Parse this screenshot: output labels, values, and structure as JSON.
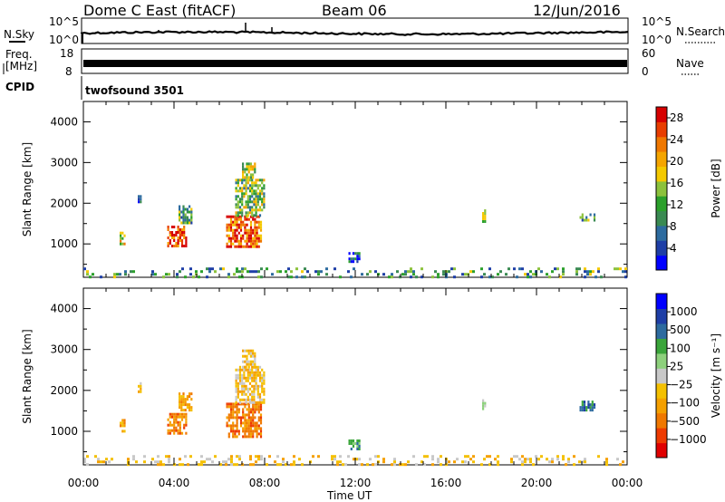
{
  "header": {
    "station": "Dome C East (fitACF)",
    "beam": "Beam 06",
    "date": "12/Jun/2016"
  },
  "panels": {
    "nsky": {
      "label": "N.Sky",
      "ticks_left": [
        "10^5",
        "10^0"
      ]
    },
    "nsearch": {
      "label": "N.Search",
      "ticks_right": [
        "10^5",
        "10^0"
      ]
    },
    "freq": {
      "label_line1": "Freq.",
      "label_line2": "[MHz]",
      "ticks_left": [
        "18",
        "8"
      ]
    },
    "nave": {
      "label": "Nave",
      "ticks_right": [
        "60",
        "0"
      ]
    },
    "cpid": {
      "label": "CPID",
      "program": "twofsound 3501"
    }
  },
  "colors": {
    "power": [
      "#0000ff",
      "#1e3ea6",
      "#2d6b9f",
      "#3a8a52",
      "#2ba02b",
      "#8cc23c",
      "#f4c900",
      "#f5a500",
      "#f07800",
      "#e83d00",
      "#d60000"
    ],
    "velocity": [
      "#e00000",
      "#ee3a00",
      "#f07800",
      "#f5a000",
      "#f4c000",
      "#c8c8c8",
      "#8dd07c",
      "#3aa53a",
      "#2d6b9f",
      "#1e3ea6",
      "#0000ff"
    ]
  },
  "chart_data": [
    {
      "type": "heatmap",
      "title": "Power",
      "xlabel": "Time UT",
      "ylabel": "Slant Range [km]",
      "x_ticks": [
        "00:00",
        "04:00",
        "08:00",
        "12:00",
        "16:00",
        "20:00",
        "00:00"
      ],
      "y_ticks": [
        "1000",
        "2000",
        "3000",
        "4000"
      ],
      "xlim": [
        0,
        24
      ],
      "ylim": [
        180,
        4500
      ],
      "colorbar_label": "Power [dB]",
      "colorbar_ticks": [
        "4",
        "8",
        "12",
        "16",
        "20",
        "24",
        "28"
      ],
      "colorbar_range": [
        0,
        30
      ],
      "regions": [
        {
          "t0": 3.7,
          "t1": 4.5,
          "r0": 950,
          "r1": 1450,
          "level": 26
        },
        {
          "t0": 4.2,
          "t1": 4.8,
          "r0": 1500,
          "r1": 1950,
          "level": 12
        },
        {
          "t0": 6.3,
          "t1": 7.8,
          "r0": 900,
          "r1": 1700,
          "level": 24
        },
        {
          "t0": 6.7,
          "t1": 8.0,
          "r0": 1700,
          "r1": 2600,
          "level": 14
        },
        {
          "t0": 7.0,
          "t1": 7.6,
          "r0": 2600,
          "r1": 3000,
          "level": 16
        },
        {
          "t0": 11.7,
          "t1": 12.2,
          "r0": 550,
          "r1": 800,
          "level": 6
        },
        {
          "t0": 17.6,
          "t1": 17.7,
          "r0": 1550,
          "r1": 1850,
          "level": 18
        },
        {
          "t0": 21.9,
          "t1": 22.6,
          "r0": 1550,
          "r1": 1750,
          "level": 10
        },
        {
          "t0": 2.4,
          "t1": 2.5,
          "r0": 2000,
          "r1": 2200,
          "level": 8
        },
        {
          "t0": 1.6,
          "t1": 1.8,
          "r0": 1000,
          "r1": 1300,
          "level": 18
        },
        {
          "t0": 0.0,
          "t1": 24.0,
          "r0": 180,
          "r1": 420,
          "level": 10
        }
      ]
    },
    {
      "type": "heatmap",
      "title": "Velocity",
      "xlabel": "Time UT",
      "ylabel": "Slant Range [km]",
      "x_ticks": [
        "00:00",
        "04:00",
        "08:00",
        "12:00",
        "16:00",
        "20:00",
        "00:00"
      ],
      "y_ticks": [
        "1000",
        "2000",
        "3000",
        "4000"
      ],
      "xlim": [
        0,
        24
      ],
      "ylim": [
        180,
        4500
      ],
      "colorbar_label": "Velocity [m s⁻¹]",
      "colorbar_ticks": [
        "−1000",
        "−500",
        "−100",
        "−25",
        "25",
        "100",
        "500",
        "1000"
      ],
      "regions": [
        {
          "t0": 3.7,
          "t1": 4.5,
          "r0": 950,
          "r1": 1450,
          "level": 2
        },
        {
          "t0": 4.2,
          "t1": 4.8,
          "r0": 1500,
          "r1": 1950,
          "level": 3
        },
        {
          "t0": 6.3,
          "t1": 7.8,
          "r0": 900,
          "r1": 1700,
          "level": 2
        },
        {
          "t0": 6.7,
          "t1": 8.0,
          "r0": 1700,
          "r1": 2600,
          "level": 4
        },
        {
          "t0": 7.0,
          "t1": 7.6,
          "r0": 2600,
          "r1": 3000,
          "level": 4
        },
        {
          "t0": 11.7,
          "t1": 12.2,
          "r0": 550,
          "r1": 800,
          "level": 7
        },
        {
          "t0": 17.6,
          "t1": 17.7,
          "r0": 1550,
          "r1": 1850,
          "level": 5
        },
        {
          "t0": 21.9,
          "t1": 22.6,
          "r0": 1550,
          "r1": 1750,
          "level": 8
        },
        {
          "t0": 2.4,
          "t1": 2.5,
          "r0": 2000,
          "r1": 2200,
          "level": 4
        },
        {
          "t0": 1.6,
          "t1": 1.8,
          "r0": 1000,
          "r1": 1300,
          "level": 3
        },
        {
          "t0": 0.0,
          "t1": 24.0,
          "r0": 180,
          "r1": 420,
          "level": 4
        }
      ]
    }
  ]
}
